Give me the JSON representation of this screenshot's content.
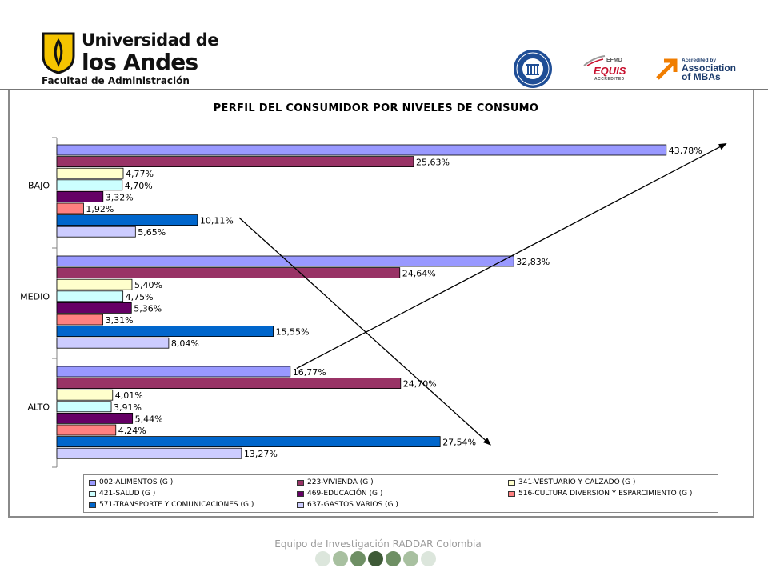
{
  "header": {
    "university_line1": "Universidad de",
    "university_line2": "los Andes",
    "faculty": "Facultad de Administración",
    "equis_top": "EFMD",
    "equis_main": "EQUIS",
    "equis_sub": "ACCREDITED",
    "amba_small": "Accredited by",
    "amba_line1": "Association",
    "amba_line2": "of MBAs"
  },
  "chart_data": {
    "type": "bar",
    "orientation": "horizontal",
    "title": "PERFIL DEL CONSUMIDOR POR NIVELES DE CONSUMO",
    "categories": [
      "BAJO",
      "MEDIO",
      "ALTO"
    ],
    "series": [
      {
        "name": "002-ALIMENTOS (G )",
        "color": "#9999ff",
        "values": [
          43.78,
          32.83,
          16.77
        ],
        "labels": [
          "43,78%",
          "32,83%",
          "16,77%"
        ]
      },
      {
        "name": "223-VIVIENDA (G )",
        "color": "#993366",
        "values": [
          25.63,
          24.64,
          24.7
        ],
        "labels": [
          "25,63%",
          "24,64%",
          "24,70%"
        ]
      },
      {
        "name": "341-VESTUARIO Y CALZADO (G )",
        "color": "#ffffcc",
        "values": [
          4.77,
          5.4,
          4.01
        ],
        "labels": [
          "4,77%",
          "5,40%",
          "4,01%"
        ]
      },
      {
        "name": "421-SALUD (G )",
        "color": "#ccffff",
        "values": [
          4.7,
          4.75,
          3.91
        ],
        "labels": [
          "4,70%",
          "4,75%",
          "3,91%"
        ]
      },
      {
        "name": "469-EDUCACIÓN (G )",
        "color": "#660066",
        "values": [
          3.32,
          5.36,
          5.44
        ],
        "labels": [
          "3,32%",
          "5,36%",
          "5,44%"
        ]
      },
      {
        "name": "516-CULTURA DIVERSION Y ESPARCIMIENTO (G )",
        "color": "#ff8080",
        "values": [
          1.92,
          3.31,
          4.24
        ],
        "labels": [
          "1,92%",
          "3,31%",
          "4,24%"
        ]
      },
      {
        "name": "571-TRANSPORTE Y COMUNICACIONES (G )",
        "color": "#0066cc",
        "values": [
          10.11,
          15.55,
          27.54
        ],
        "labels": [
          "10,11%",
          "15,55%",
          "27,54%"
        ]
      },
      {
        "name": "637-GASTOS VARIOS (G )",
        "color": "#ccccff",
        "values": [
          5.65,
          8.04,
          13.27
        ],
        "labels": [
          "5,65%",
          "8,04%",
          "13,27%"
        ]
      }
    ],
    "xlim": [
      0,
      45
    ],
    "legend_position": "bottom",
    "annotations": [
      "arrow from ALTO 002-ALIMENTOS to BAJO 002-ALIMENTOS",
      "arrow from BAJO 571-TRANSPORTE to ALTO 571-TRANSPORTE"
    ]
  },
  "footer": {
    "text": "Equipo de Investigación RADDAR Colombia",
    "dot_colors": [
      "#dce6dc",
      "#a8c0a0",
      "#6e8f64",
      "#3e5a36",
      "#6e8f64",
      "#a8c0a0",
      "#dce6dc"
    ]
  }
}
